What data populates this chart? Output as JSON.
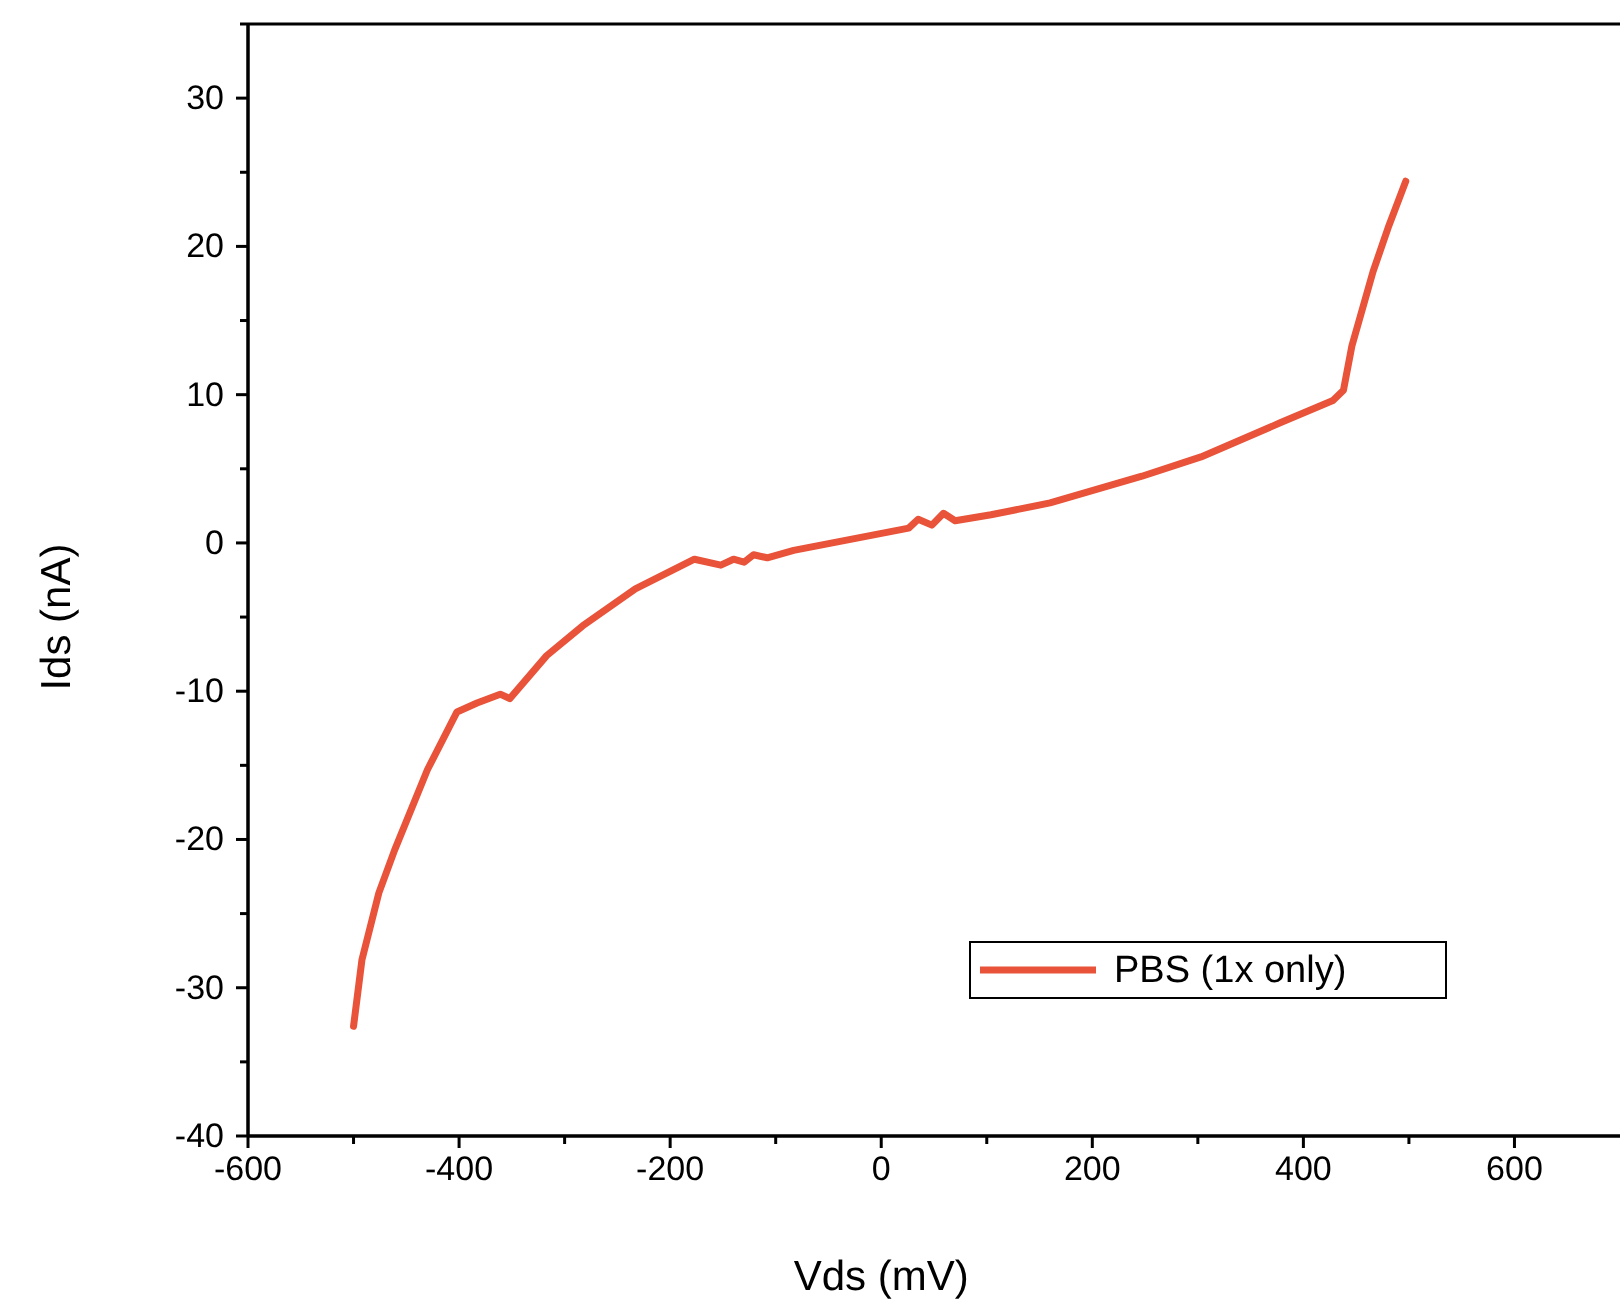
{
  "chart_data": {
    "type": "line",
    "xlabel": "Vds (mV)",
    "ylabel": "Ids (nA)",
    "xlim": [
      -600,
      700
    ],
    "xticks": [
      -600,
      -400,
      -200,
      0,
      200,
      400,
      600
    ],
    "ylim": [
      -40,
      35
    ],
    "yticks": [
      -40,
      -30,
      -20,
      -10,
      0,
      10,
      20,
      30
    ],
    "legend": "bottom right",
    "line_style": "solid",
    "series": [
      {
        "name": "PBS (1x only)",
        "color": "#e8533a",
        "x": [
          -500,
          -492,
          -476,
          -461,
          -430,
          -402,
          -383,
          -361,
          -352,
          -317,
          -283,
          -233,
          -177,
          -152,
          -140,
          -130,
          -121,
          -108,
          -83,
          26,
          35,
          48,
          59,
          70,
          104,
          160,
          247,
          303,
          378,
          428,
          438,
          446,
          466,
          481,
          497
        ],
        "values": [
          -32.6,
          -28.1,
          -23.6,
          -20.7,
          -15.3,
          -11.4,
          -10.8,
          -10.2,
          -10.5,
          -7.6,
          -5.6,
          -3.1,
          -1.1,
          -1.5,
          -1.1,
          -1.3,
          -0.8,
          -1.0,
          -0.5,
          1.0,
          1.6,
          1.2,
          2.0,
          1.5,
          1.9,
          2.7,
          4.5,
          5.8,
          8.1,
          9.6,
          10.3,
          13.3,
          18.3,
          21.4,
          24.4
        ]
      }
    ]
  }
}
